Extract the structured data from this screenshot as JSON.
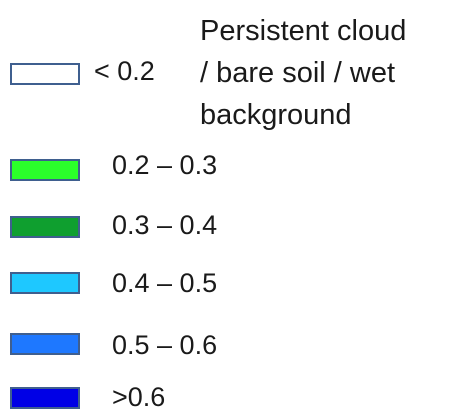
{
  "legend": {
    "items": [
      {
        "label": "< 0.2",
        "color": "#ffffff"
      },
      {
        "label": "0.2 – 0.3",
        "color": "#2bff2b"
      },
      {
        "label": "0.3 – 0.4",
        "color": "#0f9f2f"
      },
      {
        "label": "0.4 – 0.5",
        "color": "#1ec8ff"
      },
      {
        "label": "0.5 – 0.6",
        "color": "#1e78ff"
      },
      {
        "label": ">0.6",
        "color": "#0000e6"
      }
    ],
    "description_lines": [
      "Persistent cloud",
      "/ bare soil / wet",
      "background"
    ]
  }
}
